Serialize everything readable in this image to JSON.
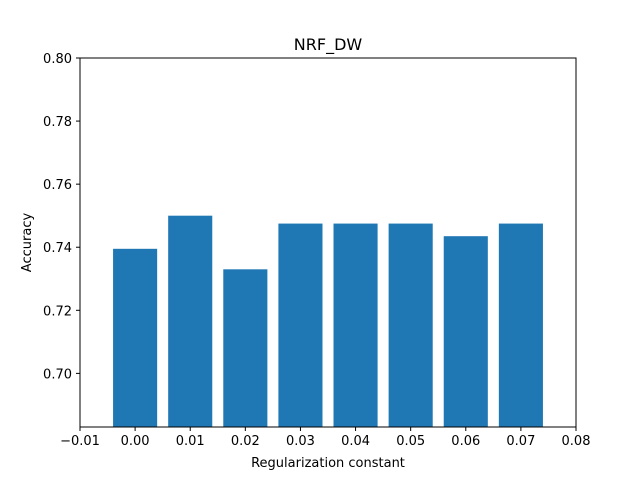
{
  "chart_data": {
    "type": "bar",
    "title": "NRF_DW",
    "xlabel": "Regularization constant",
    "ylabel": "Accuracy",
    "x": [
      0.0,
      0.01,
      0.02,
      0.03,
      0.04,
      0.05,
      0.06,
      0.07
    ],
    "values": [
      0.7395,
      0.75,
      0.733,
      0.7475,
      0.7475,
      0.7475,
      0.7435,
      0.7475
    ],
    "bar_width": 0.008,
    "xlim": [
      -0.01,
      0.08
    ],
    "ylim": [
      0.683,
      0.8
    ],
    "xticks": [
      "−0.01",
      "0.00",
      "0.01",
      "0.02",
      "0.03",
      "0.04",
      "0.05",
      "0.06",
      "0.07",
      "0.08"
    ],
    "xtick_values": [
      -0.01,
      0.0,
      0.01,
      0.02,
      0.03,
      0.04,
      0.05,
      0.06,
      0.07,
      0.08
    ],
    "yticks": [
      "0.70",
      "0.72",
      "0.74",
      "0.76",
      "0.78",
      "0.80"
    ],
    "ytick_values": [
      0.7,
      0.72,
      0.74,
      0.76,
      0.78,
      0.8
    ],
    "grid": false,
    "bar_color": "#1f77b4"
  }
}
